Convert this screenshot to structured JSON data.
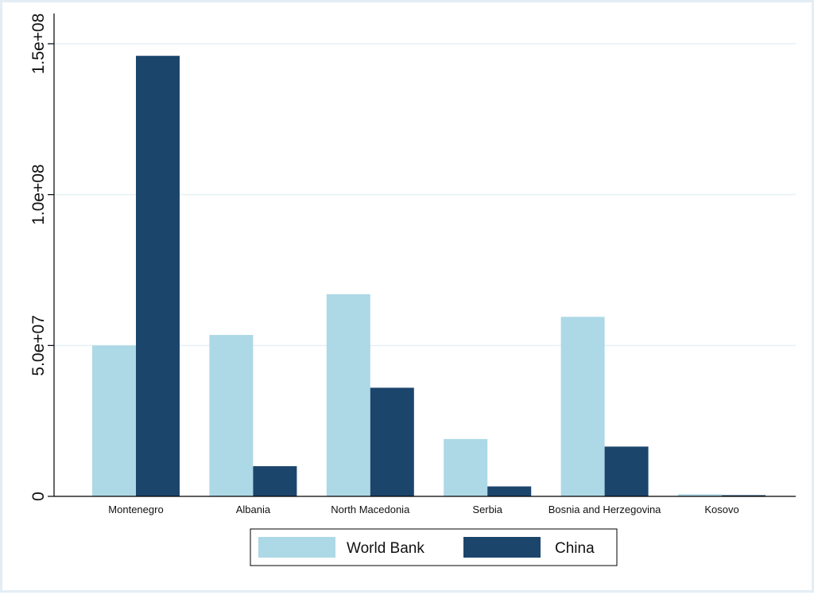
{
  "chart_data": {
    "type": "bar",
    "categories": [
      "Montenegro",
      "Albania",
      "North Macedonia",
      "Serbia",
      "Bosnia and Herzegovina",
      "Kosovo"
    ],
    "series": [
      {
        "name": "World Bank",
        "color": "#add8e6",
        "values": [
          50000000,
          53500000,
          67000000,
          19000000,
          59500000,
          700000
        ]
      },
      {
        "name": "China",
        "color": "#1c456c",
        "values": [
          146000000,
          10000000,
          36000000,
          3300000,
          16500000,
          400000
        ]
      }
    ],
    "title": "",
    "xlabel": "",
    "ylabel": "",
    "ylim": [
      0,
      150000000
    ],
    "yticks": [
      0,
      50000000,
      100000000,
      150000000
    ],
    "ytick_labels": [
      "0",
      "5.0e+07",
      "1.0e+08",
      "1.5e+08"
    ],
    "grid": true,
    "grid_color": "#e6f0f5",
    "legend": "bottom"
  }
}
